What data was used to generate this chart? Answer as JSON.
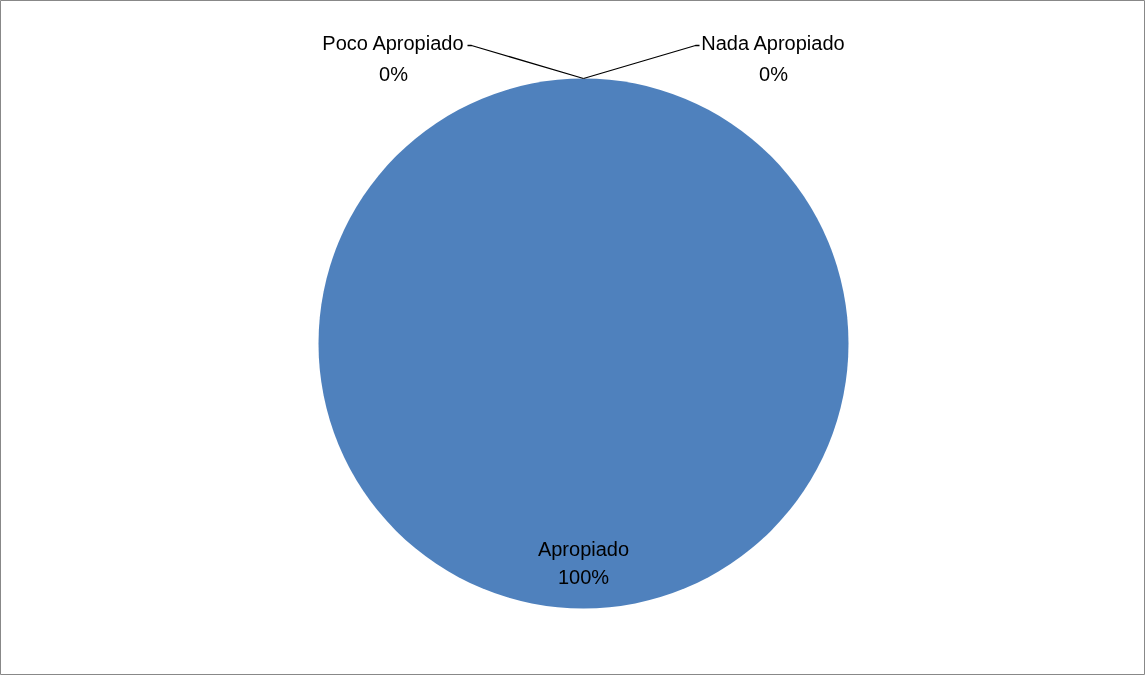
{
  "chart_data": {
    "type": "pie",
    "categories": [
      "Apropiado",
      "Poco Apropiado",
      "Nada Apropiado"
    ],
    "values": [
      100,
      0,
      0
    ],
    "colors": [
      "#4f81bd",
      "#c0504d",
      "#9bbb59"
    ],
    "value_labels": [
      "100%",
      "0%",
      "0%"
    ]
  }
}
